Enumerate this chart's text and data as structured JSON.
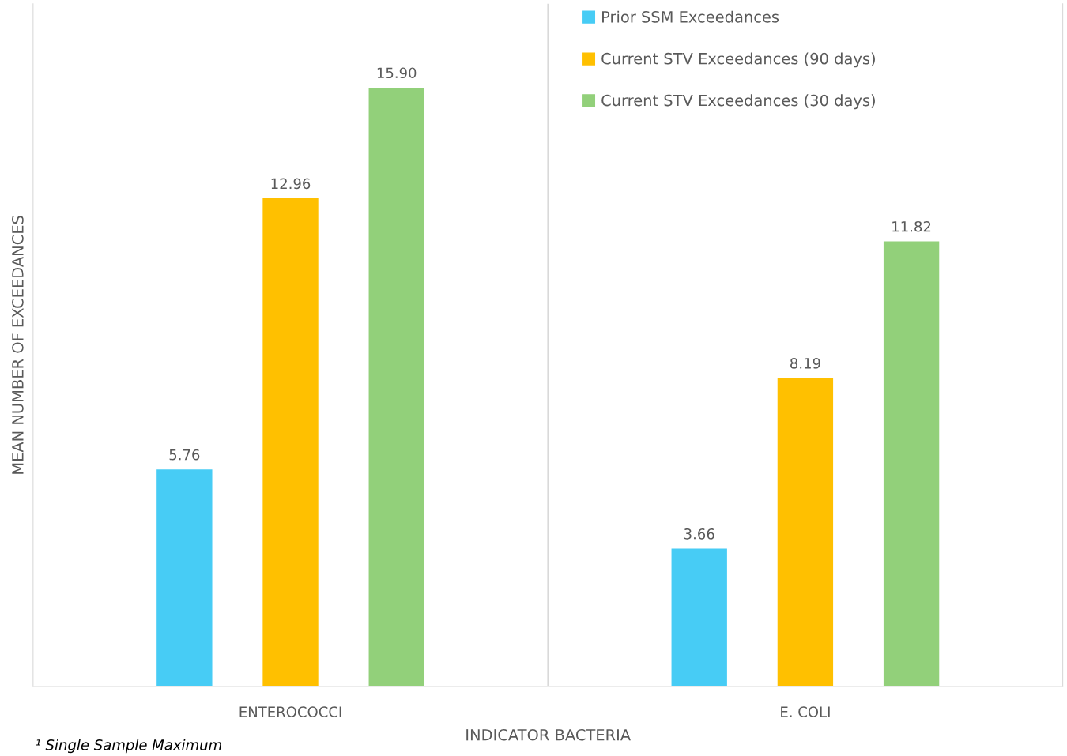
{
  "chart_data": {
    "type": "bar",
    "xlabel": "INDICATOR BACTERIA",
    "ylabel": "MEAN NUMBER OF EXCEEDANCES",
    "categories": [
      "ENTEROCOCCI",
      "E. COLI"
    ],
    "series": [
      {
        "name": "Prior SSM Exceedances",
        "color": "#47ccf5",
        "values": [
          5.76,
          3.66
        ],
        "value_labels": [
          "5.76",
          "3.66"
        ]
      },
      {
        "name": "Current STV Exceedances (90 days)",
        "color": "#ffc000",
        "values": [
          12.96,
          8.19
        ],
        "value_labels": [
          "12.96",
          "8.19"
        ]
      },
      {
        "name": "Current STV Exceedances (30 days)",
        "color": "#92d07a",
        "values": [
          15.9,
          11.82
        ],
        "value_labels": [
          "15.90",
          "11.82"
        ]
      }
    ],
    "tick_labels": "x",
    "legend": "top right",
    "annotations": [
      "¹ Single Sample Maximum"
    ]
  }
}
